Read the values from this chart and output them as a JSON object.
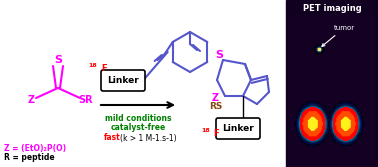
{
  "bg_color": "#ffffff",
  "pet_bg": "#1a0030",
  "title_pet": "PET imaging",
  "tumor_label": "tumor",
  "linker_text": "Linker",
  "conditions_line1": "mild conditions",
  "conditions_line2": "catalyst-free",
  "fast_text": "fast ",
  "fast_rest": "(k > 1 M-1.s-1)",
  "z_label": "Z",
  "sr_label": "SR",
  "s_label": "S",
  "rs_label": "RS",
  "f18_label": "18F",
  "z_def": "Z = (EtO)₂P(O)",
  "r_def": "R = peptide",
  "magenta": "#ff00ff",
  "red": "#ff0000",
  "green": "#008000",
  "brown": "#8B4513",
  "blue_struct": "#5555cc",
  "black": "#000000",
  "white": "#ffffff"
}
